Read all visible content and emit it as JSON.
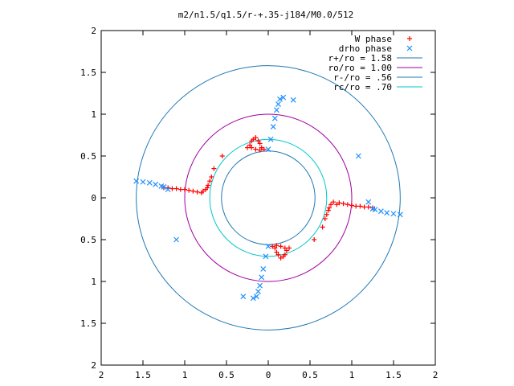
{
  "chart_data": {
    "type": "scatter",
    "title": "m2/n1.5/q1.5/r-+.35-j184/M0.0/512",
    "xlim": [
      -2,
      2
    ],
    "ylim": [
      -2,
      2
    ],
    "x_tick_values": [
      -2,
      -1.5,
      -1,
      -0.5,
      0,
      0.5,
      1,
      1.5,
      2
    ],
    "x_tick_labels": [
      "2",
      "1.5",
      "1",
      "0.5",
      "0",
      "0.5",
      "1",
      "1.5",
      "2"
    ],
    "y_tick_values": [
      2,
      1.5,
      1,
      0.5,
      0,
      -0.5,
      -1,
      -1.5,
      -2
    ],
    "y_tick_labels": [
      "2",
      "1.5",
      "1",
      "0.5",
      "0",
      "0.5",
      "1",
      "1.5",
      "2"
    ],
    "grid": false,
    "legend_position": "top-right",
    "series": [
      {
        "name": "W phase",
        "kind": "points",
        "marker": "plus",
        "color": "#ff0000",
        "points": [
          [
            -1.25,
            0.12
          ],
          [
            -1.2,
            0.12
          ],
          [
            -1.15,
            0.11
          ],
          [
            -1.1,
            0.11
          ],
          [
            -1.05,
            0.1
          ],
          [
            -1.0,
            0.1
          ],
          [
            -0.95,
            0.09
          ],
          [
            -0.9,
            0.08
          ],
          [
            -0.85,
            0.07
          ],
          [
            -0.8,
            0.06
          ],
          [
            -0.78,
            0.08
          ],
          [
            -0.75,
            0.1
          ],
          [
            -0.73,
            0.12
          ],
          [
            -0.72,
            0.15
          ],
          [
            -0.7,
            0.2
          ],
          [
            -0.68,
            0.25
          ],
          [
            -0.65,
            0.35
          ],
          [
            -0.55,
            0.5
          ],
          [
            -0.25,
            0.6
          ],
          [
            -0.22,
            0.63
          ],
          [
            -0.2,
            0.68
          ],
          [
            -0.18,
            0.7
          ],
          [
            -0.15,
            0.72
          ],
          [
            -0.12,
            0.68
          ],
          [
            -0.1,
            0.65
          ],
          [
            -0.08,
            0.6
          ],
          [
            -0.1,
            0.57
          ],
          [
            -0.15,
            0.58
          ],
          [
            -0.2,
            0.6
          ],
          [
            -0.05,
            0.58
          ],
          [
            1.25,
            -0.12
          ],
          [
            1.2,
            -0.11
          ],
          [
            1.15,
            -0.11
          ],
          [
            1.1,
            -0.1
          ],
          [
            1.05,
            -0.1
          ],
          [
            1.0,
            -0.09
          ],
          [
            0.95,
            -0.08
          ],
          [
            0.9,
            -0.07
          ],
          [
            0.85,
            -0.06
          ],
          [
            0.82,
            -0.08
          ],
          [
            0.78,
            -0.05
          ],
          [
            0.75,
            -0.08
          ],
          [
            0.73,
            -0.12
          ],
          [
            0.72,
            -0.15
          ],
          [
            0.7,
            -0.2
          ],
          [
            0.68,
            -0.25
          ],
          [
            0.65,
            -0.35
          ],
          [
            0.55,
            -0.5
          ],
          [
            0.25,
            -0.6
          ],
          [
            0.22,
            -0.63
          ],
          [
            0.2,
            -0.68
          ],
          [
            0.18,
            -0.7
          ],
          [
            0.15,
            -0.72
          ],
          [
            0.12,
            -0.68
          ],
          [
            0.1,
            -0.65
          ],
          [
            0.08,
            -0.6
          ],
          [
            0.1,
            -0.57
          ],
          [
            0.15,
            -0.58
          ],
          [
            0.2,
            -0.6
          ],
          [
            0.05,
            -0.58
          ]
        ]
      },
      {
        "name": "drho phase",
        "kind": "points",
        "marker": "cross",
        "color": "#1e90ff",
        "points": [
          [
            -1.58,
            0.2
          ],
          [
            -1.5,
            0.19
          ],
          [
            -1.42,
            0.18
          ],
          [
            -1.35,
            0.16
          ],
          [
            -1.28,
            0.14
          ],
          [
            -1.25,
            0.13
          ],
          [
            0.0,
            0.58
          ],
          [
            0.03,
            0.7
          ],
          [
            0.06,
            0.85
          ],
          [
            0.08,
            0.95
          ],
          [
            0.1,
            1.05
          ],
          [
            0.12,
            1.12
          ],
          [
            0.14,
            1.18
          ],
          [
            0.18,
            1.2
          ],
          [
            1.58,
            -0.2
          ],
          [
            1.5,
            -0.19
          ],
          [
            1.42,
            -0.18
          ],
          [
            1.35,
            -0.16
          ],
          [
            1.28,
            -0.14
          ],
          [
            1.25,
            -0.13
          ],
          [
            0.0,
            -0.58
          ],
          [
            -0.03,
            -0.7
          ],
          [
            -0.06,
            -0.85
          ],
          [
            -0.08,
            -0.95
          ],
          [
            -0.1,
            -1.05
          ],
          [
            -0.12,
            -1.12
          ],
          [
            -0.14,
            -1.18
          ],
          [
            -0.18,
            -1.2
          ],
          [
            1.08,
            0.5
          ],
          [
            1.2,
            -0.05
          ],
          [
            -0.3,
            -1.18
          ],
          [
            0.3,
            1.17
          ],
          [
            -1.2,
            0.1
          ],
          [
            -1.1,
            -0.5
          ]
        ]
      },
      {
        "name": "r+/ro = 1.58",
        "kind": "circle",
        "radius": 1.58,
        "color": "#1f78b4"
      },
      {
        "name": "ro/ro = 1.00",
        "kind": "circle",
        "radius": 1.0,
        "color": "#a000a0"
      },
      {
        "name": "r-/ro = .56",
        "kind": "circle",
        "radius": 0.56,
        "color": "#1f78b4"
      },
      {
        "name": "rc/ro = .70",
        "kind": "circle",
        "radius": 0.7,
        "color": "#00c8c8"
      }
    ]
  }
}
